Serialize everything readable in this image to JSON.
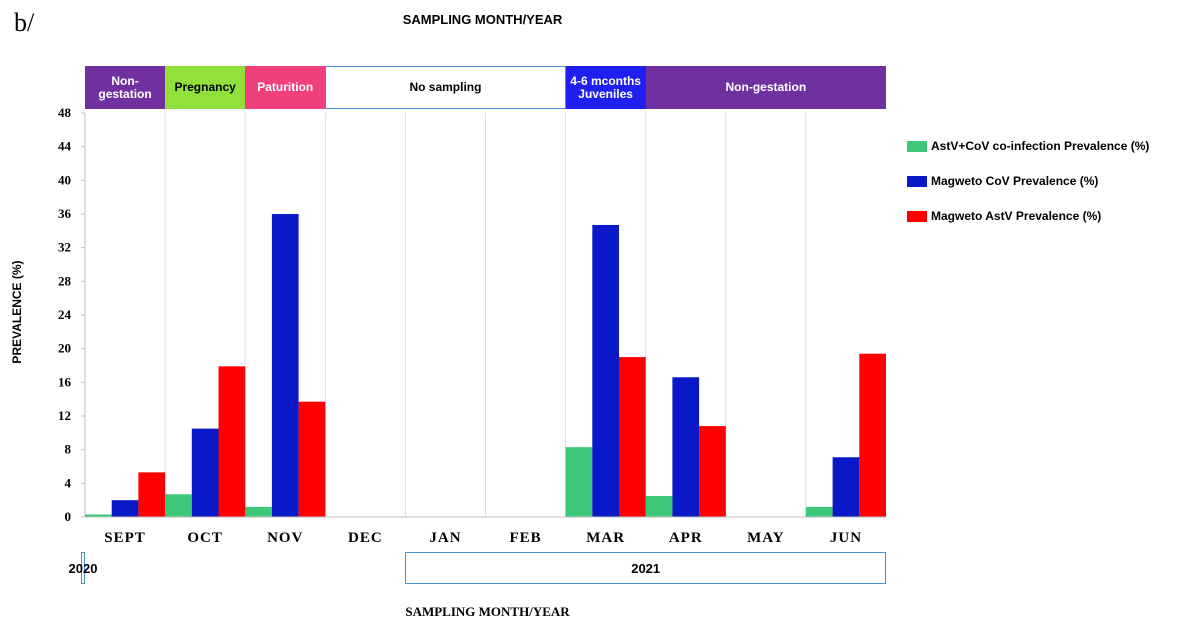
{
  "panel_label": "b/",
  "top_title": "SAMPLING MONTH/YEAR",
  "bottom_title": "SAMPLING  MONTH/YEAR",
  "ylabel": "PREVALENCE (%)",
  "phases": [
    {
      "label": "Non-gestation",
      "color": "#7030a0",
      "text_color": "#ffffff"
    },
    {
      "label": "Pregnancy",
      "color": "#92e03c",
      "text_color": "#000000"
    },
    {
      "label": "Paturition",
      "color": "#ef3f7c",
      "text_color": "#ffffff"
    },
    {
      "label": "No sampling",
      "color": "#ffffff",
      "text_color": "#000000"
    },
    {
      "label": "4-6 mconths Juveniles",
      "color": "#1f1ff0",
      "text_color": "#ffffff"
    },
    {
      "label": "Non-gestation",
      "color": "#7030a0",
      "text_color": "#ffffff"
    }
  ],
  "years": [
    {
      "label": "2020"
    },
    {
      "label": "2021"
    }
  ],
  "chart_data": {
    "type": "bar",
    "categories": [
      "SEPT",
      "OCT",
      "NOV",
      "DEC",
      "JAN",
      "FEB",
      "MAR",
      "APR",
      "MAY",
      "JUN"
    ],
    "series": [
      {
        "name": "AstV+CoV co-infection Prevalence (%)",
        "color": "#3cc878",
        "values": [
          0.3,
          2.7,
          1.2,
          0,
          0,
          0,
          8.3,
          2.5,
          0,
          1.2
        ]
      },
      {
        "name": "Magweto CoV Prevalence (%)",
        "color": "#0a19c8",
        "values": [
          2.0,
          10.5,
          36.0,
          0,
          0,
          0,
          34.7,
          16.6,
          0,
          7.1
        ]
      },
      {
        "name": "Magweto AstV Prevalence (%)",
        "color": "#ff0000",
        "values": [
          5.3,
          17.9,
          13.7,
          0,
          0,
          0,
          19.0,
          10.8,
          0,
          19.4
        ]
      }
    ],
    "xlabel": "SAMPLING  MONTH/YEAR",
    "ylabel": "PREVALENCE (%)",
    "ylim": [
      0,
      48
    ],
    "yticks": [
      0,
      4,
      8,
      12,
      16,
      20,
      24,
      28,
      32,
      36,
      40,
      44,
      48
    ],
    "grid": "vertical",
    "legend_position": "right"
  }
}
